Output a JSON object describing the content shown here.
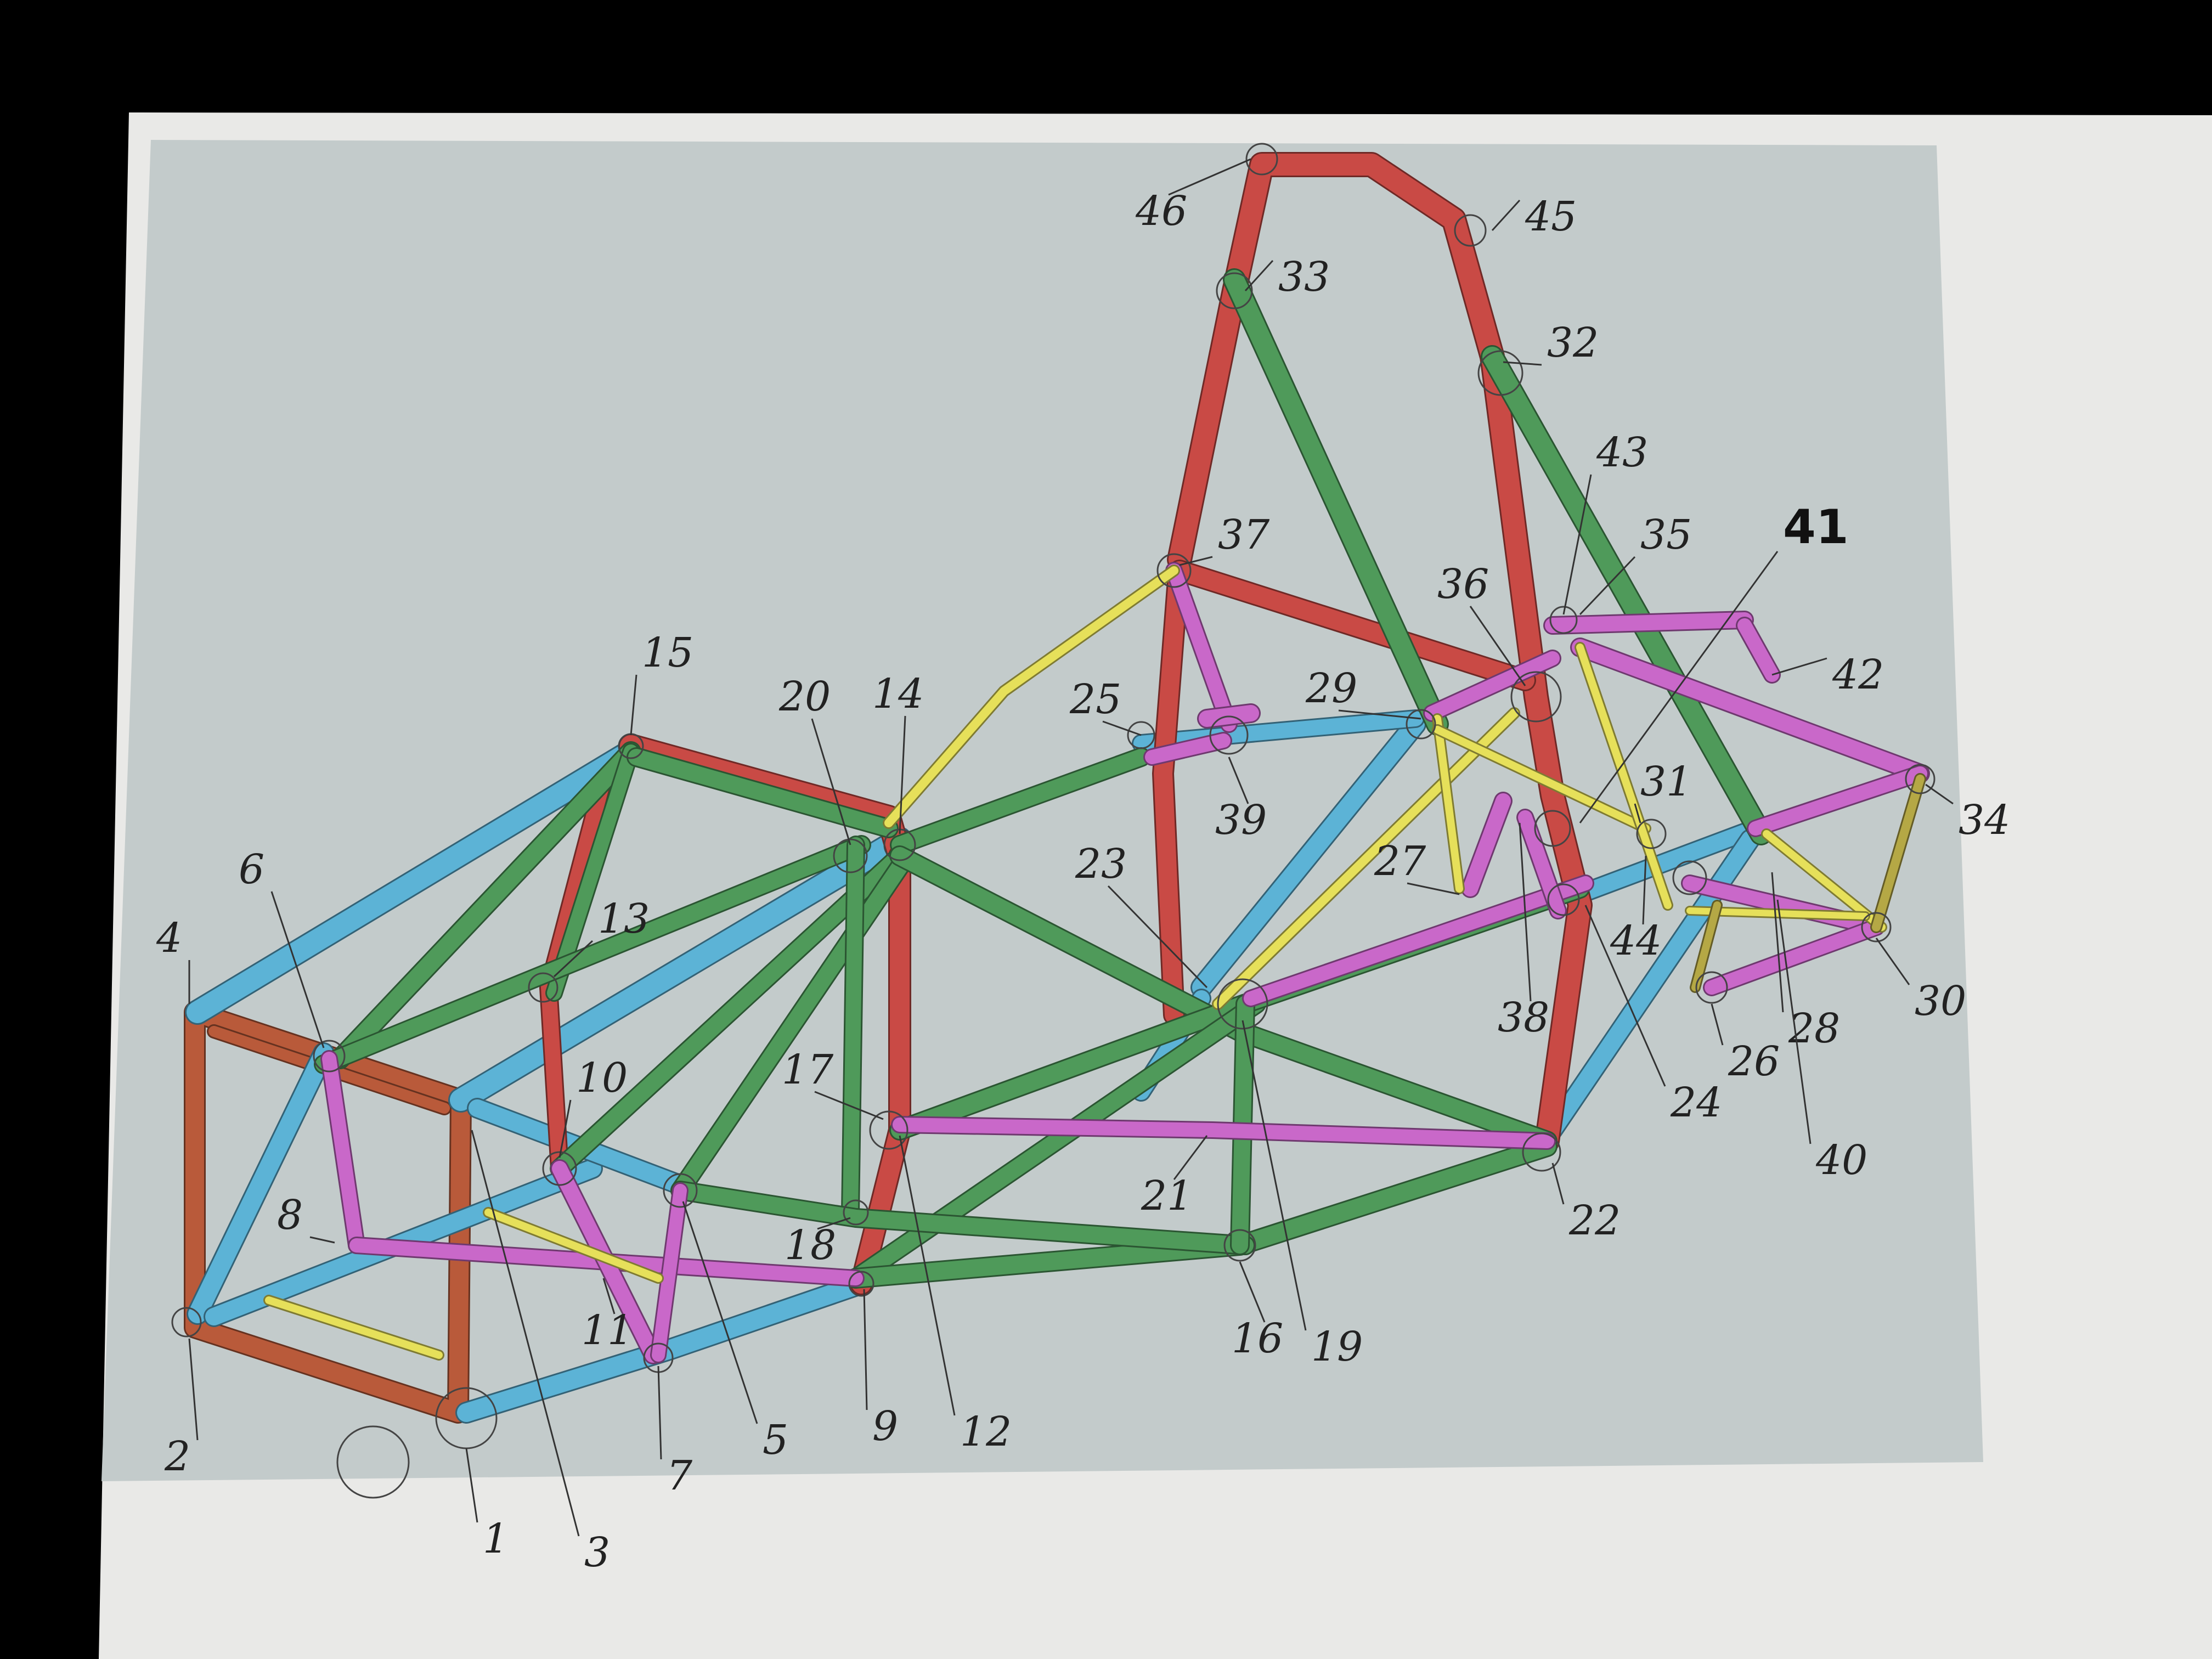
{
  "colors": {
    "background": "#000000",
    "paper": "#e9e9e7",
    "render_background": "#c3cbcb",
    "red": "#c94a45",
    "green": "#4f9a5a",
    "blue": "#5cb3d6",
    "magenta": "#c968c9",
    "yellow": "#e6e05a",
    "olive": "#b5a845",
    "orange_frame": "#b95a3a",
    "ink": "#222222"
  },
  "diagram": {
    "subject": "tube-frame-chassis",
    "node_labels": [
      "1",
      "2",
      "3",
      "4",
      "5",
      "6",
      "7",
      "8",
      "9",
      "10",
      "11",
      "12",
      "13",
      "14",
      "15",
      "16",
      "17",
      "18",
      "19",
      "20",
      "21",
      "22",
      "23",
      "24",
      "25",
      "26",
      "27",
      "28",
      "29",
      "30",
      "31",
      "32",
      "33",
      "34",
      "35",
      "36",
      "37",
      "38",
      "39",
      "40",
      "41",
      "42",
      "43",
      "44",
      "45",
      "46"
    ],
    "emphasized_label": "41",
    "member_colors": [
      "red",
      "green",
      "blue",
      "magenta",
      "yellow",
      "olive",
      "orange_frame"
    ]
  }
}
